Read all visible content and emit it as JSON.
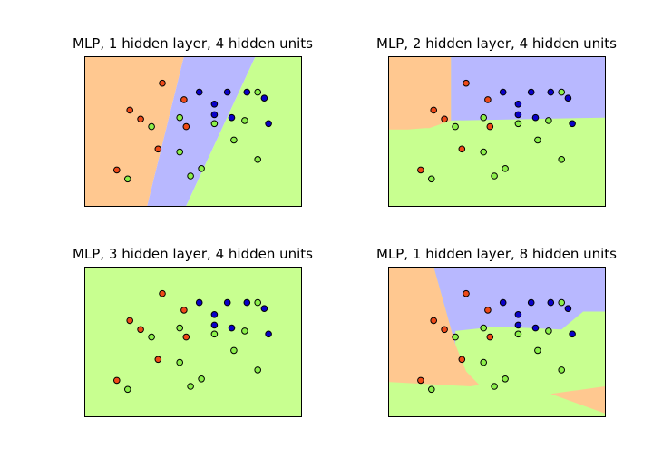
{
  "colors": {
    "orange": "#ffc890",
    "blue": "#b8b8ff",
    "green": "#c8ff90",
    "point_red": "#ee4a18",
    "point_blue": "#0a00c8",
    "point_green": "#8cf04a",
    "point_edge": "#000000"
  },
  "chart_data": [
    {
      "type": "scatter",
      "title": "MLP, 1 hidden layer, 4 hidden units",
      "xlim": [
        0,
        1
      ],
      "ylim": [
        0,
        1
      ],
      "xlabel": "",
      "ylabel": "",
      "grid": false,
      "regions": [
        {
          "class": "orange",
          "polygon": [
            [
              0,
              1
            ],
            [
              0.46,
              1
            ],
            [
              0.29,
              0
            ],
            [
              0,
              0
            ]
          ]
        },
        {
          "class": "blue",
          "polygon": [
            [
              0.46,
              1
            ],
            [
              0.79,
              1
            ],
            [
              0.47,
              0
            ],
            [
              0.29,
              0
            ]
          ]
        },
        {
          "class": "green",
          "polygon": [
            [
              0.79,
              1
            ],
            [
              1,
              1
            ],
            [
              1,
              0
            ],
            [
              0.47,
              0
            ]
          ]
        }
      ]
    },
    {
      "type": "scatter",
      "title": "MLP, 2 hidden layer, 4 hidden units",
      "xlim": [
        0,
        1
      ],
      "ylim": [
        0,
        1
      ],
      "xlabel": "",
      "ylabel": "",
      "grid": false,
      "regions": [
        {
          "class": "green",
          "polygon": [
            [
              0,
              1
            ],
            [
              1,
              1
            ],
            [
              1,
              0
            ],
            [
              0,
              0
            ]
          ]
        },
        {
          "class": "orange",
          "polygon": [
            [
              0,
              1
            ],
            [
              0.29,
              1
            ],
            [
              0.29,
              0.57
            ],
            [
              0.19,
              0.52
            ],
            [
              0.17,
              0.52
            ],
            [
              0.09,
              0.51
            ],
            [
              0,
              0.51
            ]
          ]
        },
        {
          "class": "blue",
          "polygon": [
            [
              0.29,
              1
            ],
            [
              1,
              1
            ],
            [
              1,
              0.59
            ],
            [
              0.29,
              0.57
            ]
          ]
        }
      ]
    },
    {
      "type": "scatter",
      "title": "MLP, 3 hidden layer, 4 hidden units",
      "xlim": [
        0,
        1
      ],
      "ylim": [
        0,
        1
      ],
      "xlabel": "",
      "ylabel": "",
      "grid": false,
      "regions": [
        {
          "class": "green",
          "polygon": [
            [
              0,
              1
            ],
            [
              1,
              1
            ],
            [
              1,
              0
            ],
            [
              0,
              0
            ]
          ]
        }
      ]
    },
    {
      "type": "scatter",
      "title": "MLP, 1 hidden layer, 8 hidden units",
      "xlim": [
        0,
        1
      ],
      "ylim": [
        0,
        1
      ],
      "xlabel": "",
      "ylabel": "",
      "grid": false,
      "regions": [
        {
          "class": "green",
          "polygon": [
            [
              0,
              1
            ],
            [
              1,
              1
            ],
            [
              1,
              0
            ],
            [
              0,
              0
            ]
          ]
        },
        {
          "class": "orange",
          "polygon": [
            [
              0,
              1
            ],
            [
              0.21,
              1
            ],
            [
              0.31,
              0.48
            ],
            [
              0.36,
              0.3
            ],
            [
              0.42,
              0.21
            ],
            [
              0.38,
              0.2
            ],
            [
              0,
              0.23
            ]
          ]
        },
        {
          "class": "blue",
          "polygon": [
            [
              0.21,
              1
            ],
            [
              1,
              1
            ],
            [
              1,
              0.7
            ],
            [
              0.9,
              0.7
            ],
            [
              0.8,
              0.58
            ],
            [
              0.5,
              0.6
            ],
            [
              0.31,
              0.57
            ],
            [
              0.31,
              0.48
            ]
          ]
        },
        {
          "class": "orange",
          "polygon": [
            [
              1,
              0.2
            ],
            [
              1,
              0.02
            ],
            [
              0.75,
              0.15
            ]
          ]
        }
      ]
    }
  ],
  "points": [
    {
      "x": 0.36,
      "y": 0.82,
      "class": "red"
    },
    {
      "x": 0.46,
      "y": 0.71,
      "class": "red"
    },
    {
      "x": 0.21,
      "y": 0.64,
      "class": "red"
    },
    {
      "x": 0.26,
      "y": 0.58,
      "class": "red"
    },
    {
      "x": 0.47,
      "y": 0.53,
      "class": "red"
    },
    {
      "x": 0.34,
      "y": 0.38,
      "class": "red"
    },
    {
      "x": 0.15,
      "y": 0.24,
      "class": "red"
    },
    {
      "x": 0.53,
      "y": 0.76,
      "class": "blue"
    },
    {
      "x": 0.66,
      "y": 0.76,
      "class": "blue"
    },
    {
      "x": 0.75,
      "y": 0.76,
      "class": "blue"
    },
    {
      "x": 0.83,
      "y": 0.72,
      "class": "blue"
    },
    {
      "x": 0.6,
      "y": 0.68,
      "class": "blue"
    },
    {
      "x": 0.6,
      "y": 0.61,
      "class": "blue"
    },
    {
      "x": 0.68,
      "y": 0.59,
      "class": "blue"
    },
    {
      "x": 0.85,
      "y": 0.55,
      "class": "blue"
    },
    {
      "x": 0.8,
      "y": 0.76,
      "class": "green"
    },
    {
      "x": 0.44,
      "y": 0.59,
      "class": "green"
    },
    {
      "x": 0.6,
      "y": 0.55,
      "class": "green"
    },
    {
      "x": 0.74,
      "y": 0.57,
      "class": "green"
    },
    {
      "x": 0.31,
      "y": 0.53,
      "class": "green"
    },
    {
      "x": 0.69,
      "y": 0.44,
      "class": "green"
    },
    {
      "x": 0.44,
      "y": 0.36,
      "class": "green"
    },
    {
      "x": 0.8,
      "y": 0.31,
      "class": "green"
    },
    {
      "x": 0.54,
      "y": 0.25,
      "class": "green"
    },
    {
      "x": 0.49,
      "y": 0.2,
      "class": "green"
    },
    {
      "x": 0.2,
      "y": 0.18,
      "class": "green"
    }
  ]
}
